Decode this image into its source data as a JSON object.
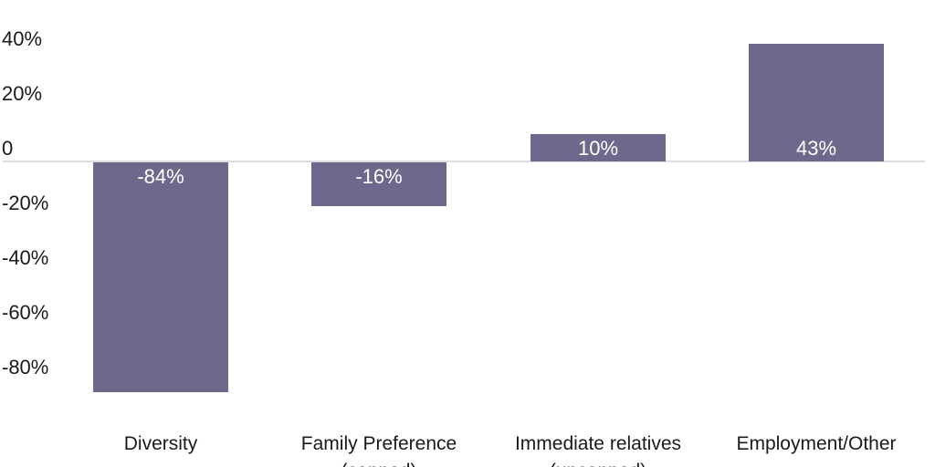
{
  "chart_data": {
    "type": "bar",
    "title": "",
    "xlabel": "",
    "ylabel": "",
    "categories": [
      "Diversity",
      "Family Preference (capped)",
      "Immediate relatives (uncapped)",
      "Employment/Other"
    ],
    "category_lines": [
      [
        "Diversity"
      ],
      [
        "Family Preference",
        "(capped)"
      ],
      [
        "Immediate relatives",
        "(uncapped)"
      ],
      [
        "Employment/Other"
      ]
    ],
    "values": [
      -84,
      -16,
      10,
      43
    ],
    "bar_labels": [
      "-84%",
      "-16%",
      "10%",
      "43%"
    ],
    "yticks": [
      {
        "value": 40,
        "label": "40%"
      },
      {
        "value": 20,
        "label": "20%"
      },
      {
        "value": 0,
        "label": "0"
      },
      {
        "value": -20,
        "label": "-20%"
      },
      {
        "value": -40,
        "label": "-40%"
      },
      {
        "value": -60,
        "label": "-60%"
      },
      {
        "value": -80,
        "label": "-80%"
      }
    ],
    "ylim": [
      -95,
      47
    ],
    "grid": "zero-line-only",
    "legend": "none",
    "colors": {
      "bar": "#6e698c",
      "bar_label_text": "#ffffff",
      "axis_text": "#1a1a1a",
      "zero_line": "#dcdcdc",
      "background": "#ffffff"
    }
  }
}
